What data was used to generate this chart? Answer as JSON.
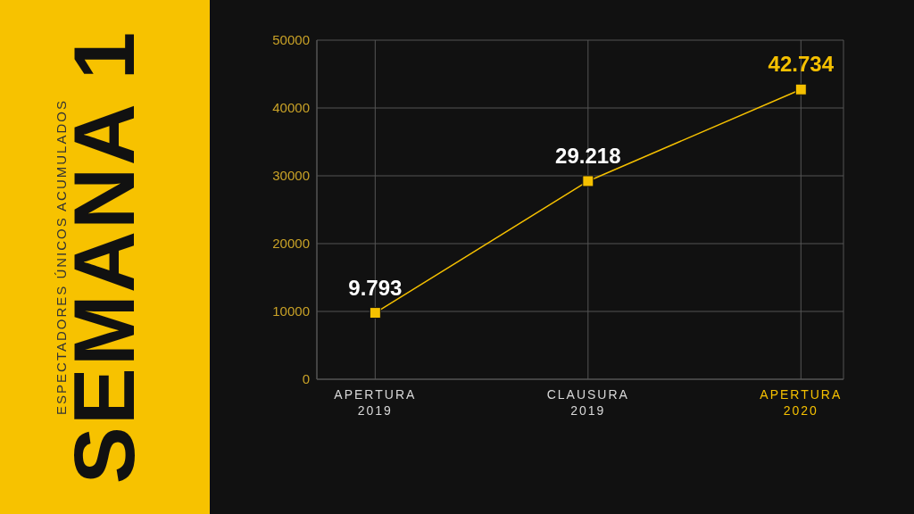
{
  "chart_data": {
    "type": "line",
    "title": "SEMANA 1",
    "subtitle": "ESPECTADORES ÚNICOS ACUMULADOS",
    "categories": [
      "APERTURA\n2019",
      "CLAUSURA\n2019",
      "APERTURA\n2020"
    ],
    "series": [
      {
        "color": "#f5c000",
        "values": [
          9793,
          29218,
          42734
        ],
        "value_labels": [
          "9.793",
          "29.218",
          "42.734"
        ]
      }
    ],
    "ylim": [
      0,
      50000
    ],
    "yticks": [
      0,
      10000,
      20000,
      30000,
      40000,
      50000
    ],
    "grid": true,
    "marker": "square",
    "line_style": "solid",
    "legend": false
  }
}
